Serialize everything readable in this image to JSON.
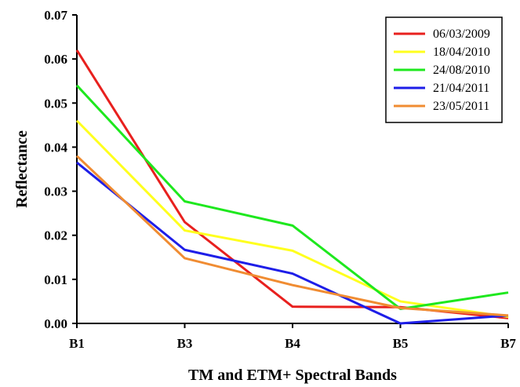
{
  "chart_data": {
    "type": "line",
    "categories": [
      "B1",
      "B3",
      "B4",
      "B5",
      "B7"
    ],
    "ylim": [
      0,
      0.07
    ],
    "yticks": [
      "0.00",
      "0.01",
      "0.02",
      "0.03",
      "0.04",
      "0.05",
      "0.06",
      "0.07"
    ],
    "xlabel": "TM and ETM+ Spectral Bands",
    "ylabel": "Reflectance",
    "grid": false,
    "legend_position": "top-right",
    "series": [
      {
        "name": "06/03/2009",
        "color": "#e8201e",
        "values": [
          0.062,
          0.023,
          0.0038,
          0.0037,
          0.0012
        ]
      },
      {
        "name": "18/04/2010",
        "color": "#ffff1e",
        "values": [
          0.046,
          0.0211,
          0.0165,
          0.005,
          0.0015
        ]
      },
      {
        "name": "24/08/2010",
        "color": "#1ee81e",
        "values": [
          0.054,
          0.0277,
          0.0222,
          0.0033,
          0.007
        ]
      },
      {
        "name": "21/04/2011",
        "color": "#1e1ee8",
        "values": [
          0.0365,
          0.0167,
          0.0113,
          0.0,
          0.0018
        ]
      },
      {
        "name": "23/05/2011",
        "color": "#f08c32",
        "values": [
          0.038,
          0.0148,
          0.0087,
          0.0035,
          0.0018
        ]
      }
    ]
  }
}
